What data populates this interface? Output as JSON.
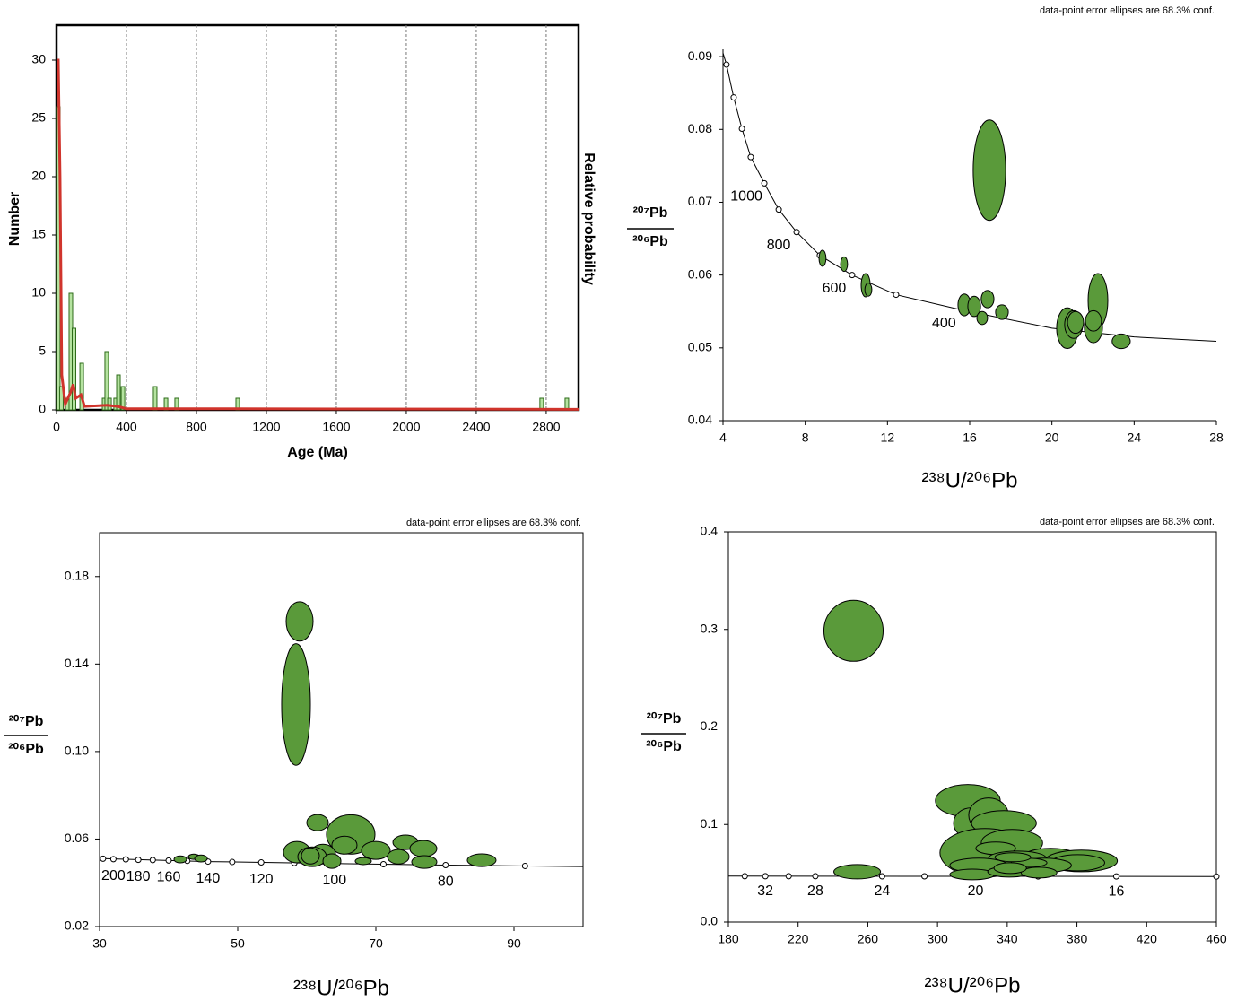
{
  "chart_data": [
    {
      "type": "bar",
      "ylabel": "Number",
      "xlabel": "Age (Ma)",
      "y2label": "Relative probability",
      "x": [
        10,
        28,
        62,
        82,
        100,
        144,
        272,
        287,
        303,
        338,
        354,
        380,
        564,
        626,
        687,
        1036,
        2774,
        2918
      ],
      "values": [
        26,
        2,
        1,
        10,
        7,
        4,
        1,
        5,
        1,
        1,
        3,
        2,
        2,
        1,
        1,
        1,
        1,
        1
      ],
      "color": "#b5e3a0",
      "edge_color": "#2e6b1a",
      "curve": {
        "color": "#d0342c",
        "x": [
          0,
          10,
          20,
          30,
          50,
          80,
          95,
          110,
          140,
          160,
          290,
          350,
          400,
          600,
          2985
        ],
        "y": [
          30,
          30,
          20,
          3,
          0.5,
          1.5,
          2.2,
          1,
          1.3,
          0.3,
          0.4,
          0.3,
          0.1,
          0.1,
          0.05
        ]
      },
      "xlim": [
        0,
        2985
      ],
      "ylim": [
        0,
        33
      ],
      "xticks": [
        0,
        400,
        800,
        1200,
        1600,
        2000,
        2400,
        2800
      ],
      "yticks": [
        0,
        5,
        10,
        15,
        20,
        25,
        30
      ],
      "grid": "x"
    },
    {
      "type": "concordia",
      "note": "data-point error ellipses are 68.3% conf.",
      "xlabel": "²³⁸U/²⁰⁶Pb",
      "ylabel": {
        "numerator": "²⁰⁷Pb",
        "denominator": "²⁰⁶Pb"
      },
      "xlim": [
        4,
        28
      ],
      "ylim": [
        0.04,
        0.091
      ],
      "xticks": [
        4,
        8,
        12,
        16,
        20,
        24,
        28
      ],
      "yticks": [
        0.04,
        0.05,
        0.06,
        0.07,
        0.08,
        0.09
      ],
      "color": "#5a9a3a",
      "curve": {
        "x": [
          4.0,
          4.17,
          4.52,
          4.92,
          5.35,
          6.01,
          6.71,
          7.58,
          8.71,
          10.28,
          12.42,
          15.62,
          20,
          24,
          28
        ],
        "y": [
          0.0905,
          0.0889,
          0.0844,
          0.0801,
          0.0762,
          0.0726,
          0.069,
          0.0659,
          0.0627,
          0.06,
          0.0573,
          0.0552,
          0.0527,
          0.0515,
          0.0509
        ]
      },
      "markers": {
        "x": [
          4.17,
          4.52,
          4.92,
          5.35,
          6.01,
          6.71,
          7.58,
          8.71,
          10.28,
          12.42,
          15.62
        ],
        "y": [
          0.0889,
          0.0844,
          0.0801,
          0.0762,
          0.0726,
          0.069,
          0.0659,
          0.0627,
          0.06,
          0.0573,
          0.0552
        ],
        "labels": [
          null,
          null,
          null,
          null,
          "1000",
          null,
          "800",
          null,
          "600",
          null,
          "400"
        ]
      },
      "ellipses": {
        "x": [
          16.96,
          8.84,
          9.89,
          10.94,
          11.07,
          15.74,
          16.22,
          16.87,
          16.61,
          17.57,
          20.75,
          21.06,
          21.15,
          22.24,
          22.02,
          22.02,
          23.37
        ],
        "y": [
          0.0744,
          0.0623,
          0.0615,
          0.0586,
          0.058,
          0.0559,
          0.0557,
          0.0567,
          0.0541,
          0.0549,
          0.0527,
          0.0532,
          0.0535,
          0.0565,
          0.0528,
          0.0537,
          0.0509
        ],
        "x_err": [
          0.79,
          0.17,
          0.17,
          0.22,
          0.17,
          0.31,
          0.31,
          0.31,
          0.26,
          0.31,
          0.52,
          0.44,
          0.39,
          0.48,
          0.44,
          0.39,
          0.44
        ],
        "y_err": [
          0.0069,
          0.0011,
          0.001,
          0.0016,
          0.0009,
          0.0015,
          0.0014,
          0.0012,
          0.0009,
          0.001,
          0.0028,
          0.0019,
          0.0015,
          0.0037,
          0.0021,
          0.0014,
          0.001
        ]
      }
    },
    {
      "type": "concordia",
      "note": "data-point error ellipses are 68.3% conf.",
      "xlabel": "²³⁸U/²⁰⁶Pb",
      "ylabel": {
        "numerator": "²⁰⁷Pb",
        "denominator": "²⁰⁶Pb"
      },
      "xlim": [
        30,
        100
      ],
      "ylim": [
        0.02,
        0.2
      ],
      "xticks": [
        30,
        50,
        70,
        90
      ],
      "yticks": [
        0.02,
        0.06,
        {
          "value": 0.1,
          "label": "0.10"
        },
        0.14,
        0.18
      ],
      "color": "#5a9a3a",
      "curve": {
        "x": [
          30,
          45.7,
          64.0,
          80.1,
          100
        ],
        "y": [
          0.0511,
          0.0497,
          0.0488,
          0.0481,
          0.0474
        ]
      },
      "markers": {
        "x": [
          30.5,
          32.0,
          33.8,
          35.6,
          37.7,
          40.0,
          42.7,
          45.7,
          49.2,
          53.4,
          58.2,
          64.0,
          71.1,
          80.1,
          91.6
        ],
        "y": [
          0.051,
          0.0508,
          0.0507,
          0.0505,
          0.0504,
          0.0502,
          0.05,
          0.0497,
          0.0495,
          0.0493,
          0.049,
          0.0488,
          0.0485,
          0.0481,
          0.0477
        ],
        "labels": [
          null,
          "200",
          null,
          "180",
          null,
          "160",
          null,
          "140",
          null,
          "120",
          null,
          "100",
          null,
          "80",
          null
        ]
      },
      "ellipses": {
        "x": [
          58.96,
          58.44,
          61.56,
          66.36,
          65.45,
          58.57,
          62.34,
          60.78,
          60.52,
          63.64,
          70.0,
          68.18,
          73.25,
          74.29,
          76.88,
          77.01,
          85.32,
          41.69,
          43.64,
          44.68
        ],
        "y": [
          0.1595,
          0.1215,
          0.0675,
          0.0621,
          0.0572,
          0.054,
          0.0531,
          0.0519,
          0.0523,
          0.0499,
          0.0548,
          0.0499,
          0.0519,
          0.0585,
          0.0556,
          0.0495,
          0.0503,
          0.0507,
          0.0519,
          0.0511
        ],
        "x_err": [
          1.95,
          2.08,
          1.56,
          3.51,
          1.82,
          1.95,
          1.82,
          2.08,
          1.3,
          1.3,
          2.08,
          1.17,
          1.56,
          1.82,
          1.95,
          1.82,
          2.08,
          0.91,
          0.78,
          0.91
        ],
        "y_err": [
          0.009,
          0.0278,
          0.0037,
          0.009,
          0.0041,
          0.0049,
          0.0045,
          0.0045,
          0.0037,
          0.0033,
          0.0041,
          0.0016,
          0.0033,
          0.0033,
          0.0037,
          0.0029,
          0.0029,
          0.0016,
          0.0012,
          0.0016
        ]
      }
    },
    {
      "type": "concordia",
      "note": "data-point error ellipses are 68.3% conf.",
      "xlabel": "²³⁸U/²⁰⁶Pb",
      "ylabel": {
        "numerator": "²⁰⁷Pb",
        "denominator": "²⁰⁶Pb"
      },
      "xlim": [
        180,
        460
      ],
      "ylim": [
        0,
        0.4
      ],
      "xticks": [
        180,
        220,
        260,
        300,
        340,
        380,
        420,
        460
      ],
      "yticks": [
        {
          "value": 0,
          "label": "0.0"
        },
        0.1,
        0.2,
        0.3,
        0.4
      ],
      "color": "#5a9a3a",
      "curve": {
        "x": [
          180,
          460
        ],
        "y": [
          0.0471,
          0.0467
        ]
      },
      "markers": {
        "x": [
          189.4,
          201.2,
          214.6,
          229.9,
          268.2,
          292.5,
          321.8,
          357.7,
          402.6,
          460
        ],
        "y": [
          0.047,
          0.047,
          0.047,
          0.047,
          0.0469,
          0.0469,
          0.0469,
          0.0468,
          0.0468,
          0.0467
        ],
        "labels": [
          null,
          "32",
          null,
          "28",
          "24",
          null,
          "20",
          null,
          "16",
          null
        ]
      },
      "ellipses": {
        "x": [
          251.8,
          253.9,
          317.4,
          319.5,
          329.3,
          338.1,
          327.2,
          342.7,
          333.4,
          364.9,
          382.5,
          380.4,
          345.8,
          323.6,
          361.3,
          320.0,
          341.2,
          358.2,
          352.5,
          343.2,
          341.7
        ],
        "y": [
          0.2986,
          0.0516,
          0.1244,
          0.1014,
          0.1097,
          0.1014,
          0.071,
          0.0811,
          0.0756,
          0.0645,
          0.0627,
          0.0608,
          0.0654,
          0.0581,
          0.0581,
          0.0488,
          0.0516,
          0.0507,
          0.0608,
          0.0664,
          0.0553
        ],
        "x_err": [
          17.0,
          13.4,
          18.6,
          10.3,
          11.4,
          18.6,
          25.8,
          17.6,
          11.4,
          17.6,
          20.7,
          15.5,
          16.5,
          16.5,
          15.5,
          12.9,
          12.4,
          10.3,
          10.3,
          10.3,
          9.3
        ],
        "y_err": [
          0.0313,
          0.0074,
          0.0166,
          0.0157,
          0.0175,
          0.0129,
          0.0249,
          0.0138,
          0.0065,
          0.0111,
          0.0111,
          0.0083,
          0.0074,
          0.0074,
          0.0074,
          0.0055,
          0.0055,
          0.0055,
          0.0046,
          0.0046,
          0.0055
        ]
      }
    }
  ]
}
